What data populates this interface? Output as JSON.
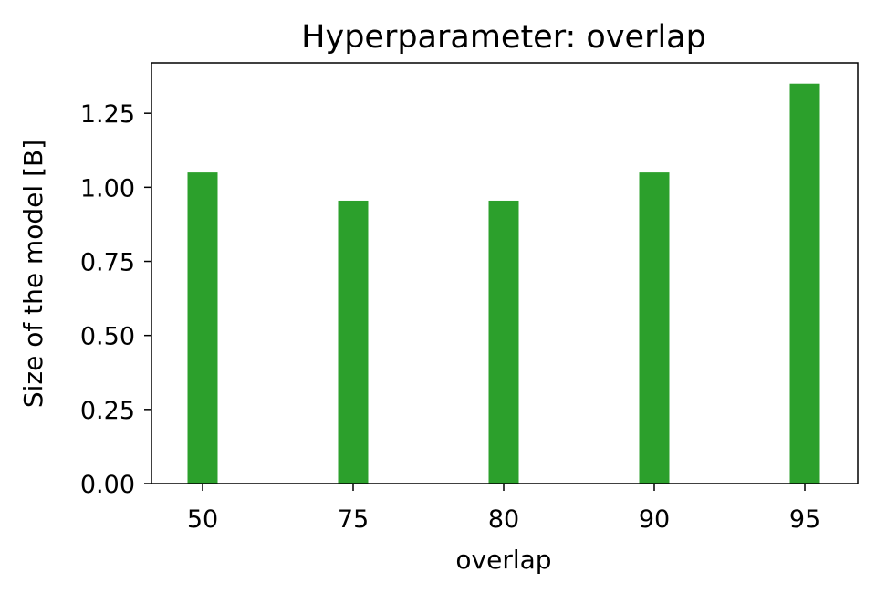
{
  "chart_data": {
    "type": "bar",
    "title": "Hyperparameter: overlap",
    "xlabel": "overlap",
    "ylabel": "Size of the model [B]",
    "categories": [
      "50",
      "75",
      "80",
      "90",
      "95"
    ],
    "values": [
      1.05,
      0.955,
      0.955,
      1.05,
      1.35
    ],
    "ylim": [
      0,
      1.42
    ],
    "yticks": [
      "0.00",
      "0.25",
      "0.50",
      "0.75",
      "1.00",
      "1.25"
    ],
    "bar_color": "#2ca02c",
    "grid": false,
    "legend": "none"
  }
}
